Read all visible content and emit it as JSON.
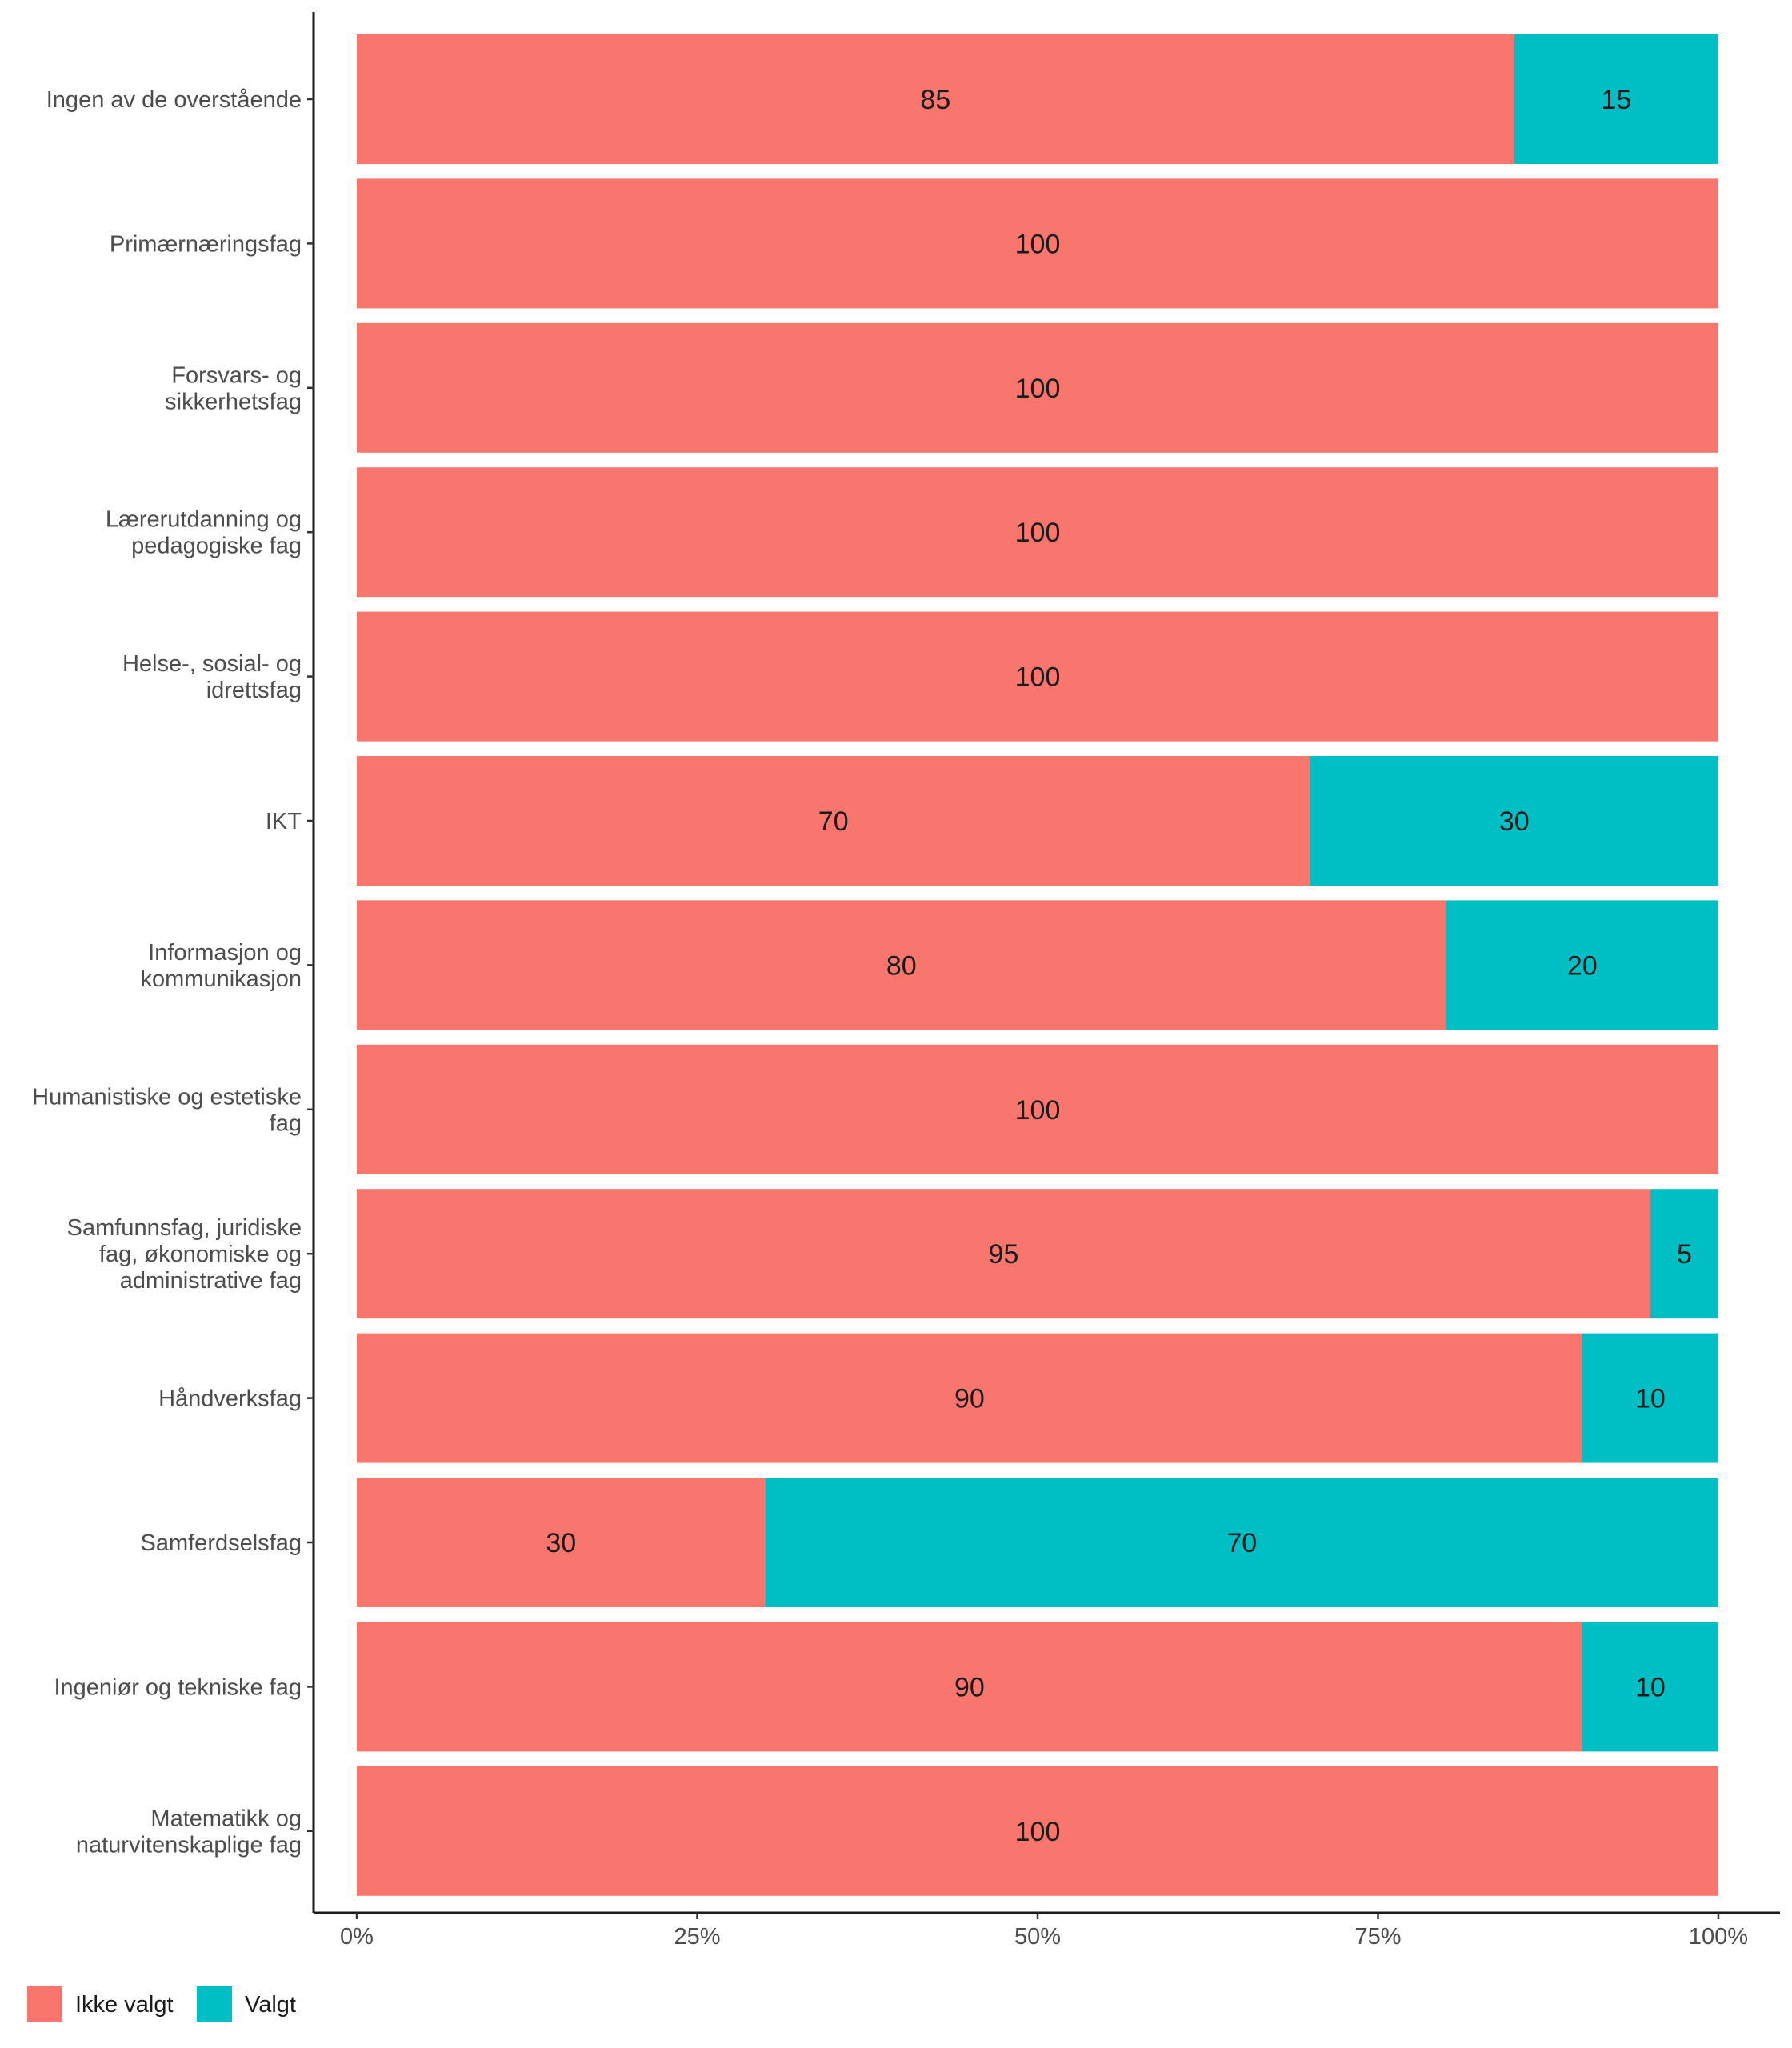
{
  "chart_data": {
    "type": "bar",
    "orientation": "horizontal",
    "stacked": true,
    "categories": [
      "Ingen av de overstående",
      "Primærnæringsfag",
      "Forsvars- og sikkerhetsfag",
      "Lærerutdanning og pedagogiske fag",
      "Helse-, sosial- og idrettsfag",
      "IKT",
      "Informasjon og kommunikasjon",
      "Humanistiske og estetiske fag",
      "Samfunnsfag, juridiske fag, økonomiske og administrative fag",
      "Håndverksfag",
      "Samferdselsfag",
      "Ingeniør og tekniske fag",
      "Matematikk og naturvitenskaplige fag"
    ],
    "category_label_lines": [
      [
        "Ingen av de overstående"
      ],
      [
        "Primærnæringsfag"
      ],
      [
        "Forsvars- og",
        "sikkerhetsfag"
      ],
      [
        "Lærerutdanning og",
        "pedagogiske fag"
      ],
      [
        "Helse-, sosial- og",
        "idrettsfag"
      ],
      [
        "IKT"
      ],
      [
        "Informasjon og",
        "kommunikasjon"
      ],
      [
        "Humanistiske og estetiske",
        "fag"
      ],
      [
        "Samfunnsfag, juridiske",
        "fag, økonomiske og",
        "administrative fag"
      ],
      [
        "Håndverksfag"
      ],
      [
        "Samferdselsfag"
      ],
      [
        "Ingeniør og tekniske fag"
      ],
      [
        "Matematikk og",
        "naturvitenskaplige fag"
      ]
    ],
    "series": [
      {
        "name": "Ikke valgt",
        "color": "#F8766D",
        "values": [
          85,
          100,
          100,
          100,
          100,
          70,
          80,
          100,
          95,
          90,
          30,
          90,
          100
        ]
      },
      {
        "name": "Valgt",
        "color": "#00BFC4",
        "values": [
          15,
          0,
          0,
          0,
          0,
          30,
          20,
          0,
          5,
          10,
          70,
          10,
          0
        ]
      }
    ],
    "xlim": [
      0,
      100
    ],
    "x_ticks": [
      0,
      25,
      50,
      75,
      100
    ],
    "x_tick_labels": [
      "0%",
      "25%",
      "50%",
      "75%",
      "100%"
    ],
    "title": "",
    "xlabel": "",
    "ylabel": "",
    "grid": false,
    "legend_position": "bottom-left"
  }
}
